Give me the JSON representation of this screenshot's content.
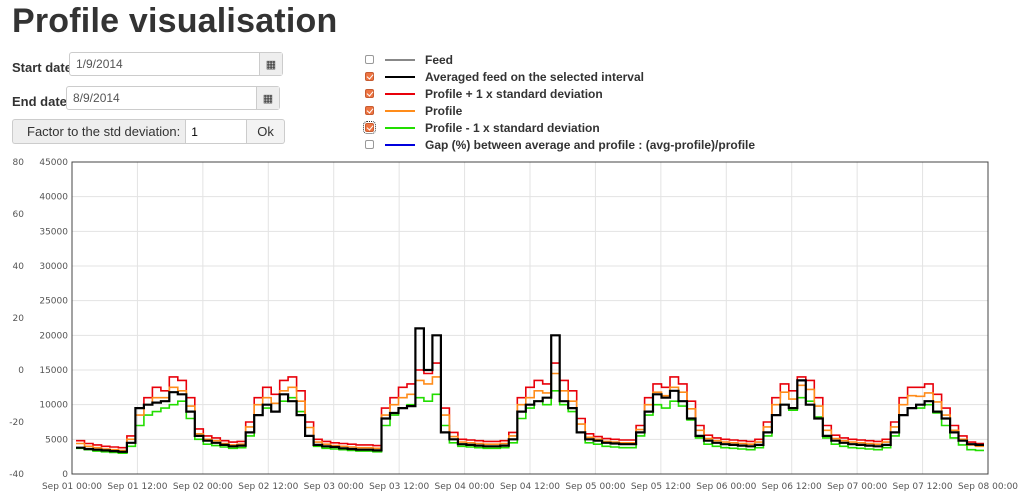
{
  "page_title": "Profile visualisation",
  "form": {
    "start_label": "Start date",
    "start_value": "1/9/2014",
    "end_label": "End date",
    "end_value": "8/9/2014",
    "factor_label": "Factor to the std deviation:",
    "factor_value": "1",
    "ok_label": "Ok",
    "calendar_icon": "calendar-icon"
  },
  "legend": [
    {
      "label": "Feed",
      "color": "#888888",
      "checked": false
    },
    {
      "label": "Averaged feed on the selected interval",
      "color": "#000000",
      "checked": true
    },
    {
      "label": "Profile + 1 x standard deviation",
      "color": "#e8000a",
      "checked": true
    },
    {
      "label": "Profile",
      "color": "#ff8c1a",
      "checked": true
    },
    {
      "label": "Profile - 1 x standard deviation",
      "color": "#22dd00",
      "checked": true
    },
    {
      "label": "Gap (%) between average and profile : (avg-profile)/profile",
      "color": "#0000dd",
      "checked": false
    }
  ],
  "chart_data": {
    "type": "line",
    "y_left": {
      "ticks": [
        "80",
        "60",
        "40",
        "20",
        "0",
        "-20",
        "-40"
      ],
      "range": [
        -40,
        80
      ]
    },
    "y_right": {
      "ticks": [
        "45000",
        "40000",
        "35000",
        "30000",
        "25000",
        "20000",
        "15000",
        "10000",
        "5000",
        "0"
      ],
      "range": [
        0,
        45000
      ]
    },
    "x_ticks": [
      "Sep 01 00:00",
      "Sep 01 12:00",
      "Sep 02 00:00",
      "Sep 02 12:00",
      "Sep 03 00:00",
      "Sep 03 12:00",
      "Sep 04 00:00",
      "Sep 04 12:00",
      "Sep 05 00:00",
      "Sep 05 12:00",
      "Sep 06 00:00",
      "Sep 06 12:00",
      "Sep 07 00:00",
      "Sep 07 12:00",
      "Sep 08 00:00"
    ],
    "grid": true,
    "series": [
      {
        "name": "Averaged feed on the selected interval",
        "color": "#000000",
        "values": [
          3800,
          3600,
          3500,
          3400,
          3300,
          3200,
          4500,
          9500,
          10000,
          10300,
          10500,
          11800,
          11500,
          9000,
          5500,
          4800,
          4500,
          4200,
          4000,
          4100,
          6000,
          8500,
          10000,
          9000,
          11500,
          10500,
          8500,
          5500,
          4200,
          4000,
          3900,
          3700,
          3600,
          3500,
          3500,
          3400,
          8000,
          8800,
          9500,
          9800,
          21000,
          15000,
          20000,
          6000,
          5000,
          4300,
          4200,
          4100,
          4000,
          4000,
          4100,
          5000,
          9000,
          10000,
          10500,
          11000,
          20000,
          10500,
          9500,
          6000,
          5000,
          4800,
          4500,
          4400,
          4300,
          4300,
          6000,
          9000,
          11500,
          11000,
          12000,
          10500,
          8000,
          5500,
          4800,
          4500,
          4300,
          4200,
          4100,
          4000,
          4200,
          6000,
          8500,
          10000,
          9500,
          13500,
          10000,
          8000,
          5500,
          4800,
          4500,
          4300,
          4200,
          4100,
          4000,
          4200,
          6000,
          8500,
          9500,
          10000,
          10500,
          9000,
          8000,
          6000,
          4800,
          4300,
          4200
        ]
      },
      {
        "name": "Profile + 1 x standard deviation",
        "color": "#e8000a",
        "values": [
          4800,
          4400,
          4200,
          4000,
          3900,
          3800,
          5500,
          9500,
          11000,
          12500,
          12000,
          14000,
          13500,
          11000,
          6500,
          5500,
          5200,
          4800,
          4600,
          4700,
          7500,
          11000,
          12500,
          11500,
          13500,
          14000,
          12000,
          7500,
          5000,
          4700,
          4500,
          4400,
          4300,
          4200,
          4200,
          4100,
          9500,
          11000,
          12500,
          13000,
          15000,
          14500,
          16000,
          9500,
          6000,
          5000,
          4900,
          4800,
          4700,
          4700,
          4800,
          6000,
          11000,
          12500,
          13500,
          13000,
          16000,
          13500,
          12000,
          8000,
          5800,
          5400,
          5100,
          5000,
          4900,
          4900,
          7000,
          11000,
          13000,
          12500,
          14000,
          13000,
          10500,
          7000,
          5600,
          5200,
          5000,
          4900,
          4800,
          4700,
          5000,
          7500,
          11000,
          13000,
          12000,
          14000,
          13500,
          11000,
          7000,
          5600,
          5200,
          5000,
          4900,
          4800,
          4700,
          5000,
          7500,
          11000,
          12500,
          12500,
          13000,
          11500,
          9500,
          7000,
          5500,
          4600,
          4400
        ]
      },
      {
        "name": "Profile",
        "color": "#ff8c1a",
        "values": [
          4400,
          4000,
          3800,
          3600,
          3500,
          3400,
          5000,
          8500,
          10000,
          11000,
          11000,
          12500,
          12000,
          9800,
          5800,
          5000,
          4800,
          4400,
          4200,
          4300,
          6800,
          10000,
          11000,
          10200,
          12000,
          12500,
          10500,
          6700,
          4600,
          4300,
          4100,
          4000,
          3900,
          3800,
          3800,
          3700,
          8500,
          10000,
          11000,
          11500,
          13500,
          13000,
          14000,
          8500,
          5400,
          4600,
          4500,
          4400,
          4300,
          4300,
          4400,
          5500,
          10000,
          11000,
          12000,
          11700,
          14500,
          12000,
          10500,
          7200,
          5300,
          5000,
          4700,
          4600,
          4500,
          4500,
          6400,
          10000,
          11800,
          11300,
          12500,
          11800,
          9400,
          6300,
          5100,
          4800,
          4600,
          4500,
          4400,
          4300,
          4600,
          6800,
          10000,
          11800,
          10800,
          12800,
          12200,
          9800,
          6300,
          5100,
          4800,
          4600,
          4500,
          4400,
          4300,
          4600,
          6800,
          10000,
          11300,
          11200,
          11700,
          10400,
          8500,
          6300,
          5000,
          4200,
          4000
        ]
      },
      {
        "name": "Profile - 1 x standard deviation",
        "color": "#22dd00",
        "values": [
          3700,
          3500,
          3300,
          3200,
          3100,
          3000,
          4000,
          7000,
          8500,
          9000,
          9500,
          10000,
          10500,
          8000,
          5000,
          4300,
          4100,
          3900,
          3700,
          3800,
          5500,
          8500,
          9500,
          9000,
          10500,
          11000,
          9000,
          5500,
          4000,
          3700,
          3600,
          3500,
          3400,
          3300,
          3300,
          3200,
          7000,
          8500,
          9500,
          10000,
          11000,
          10500,
          11500,
          7000,
          4500,
          4000,
          3900,
          3800,
          3700,
          3700,
          3800,
          4500,
          8000,
          9500,
          10500,
          10000,
          12000,
          10000,
          9000,
          6000,
          4500,
          4300,
          4000,
          3900,
          3800,
          3800,
          5500,
          8500,
          10000,
          9500,
          10500,
          9800,
          7800,
          5200,
          4300,
          4000,
          3800,
          3700,
          3600,
          3500,
          3800,
          5500,
          8500,
          10000,
          9200,
          11000,
          10500,
          8200,
          5200,
          4300,
          4000,
          3800,
          3700,
          3600,
          3500,
          3800,
          5500,
          8500,
          9500,
          9500,
          10000,
          8800,
          7000,
          5200,
          4200,
          3500,
          3400
        ]
      }
    ]
  }
}
